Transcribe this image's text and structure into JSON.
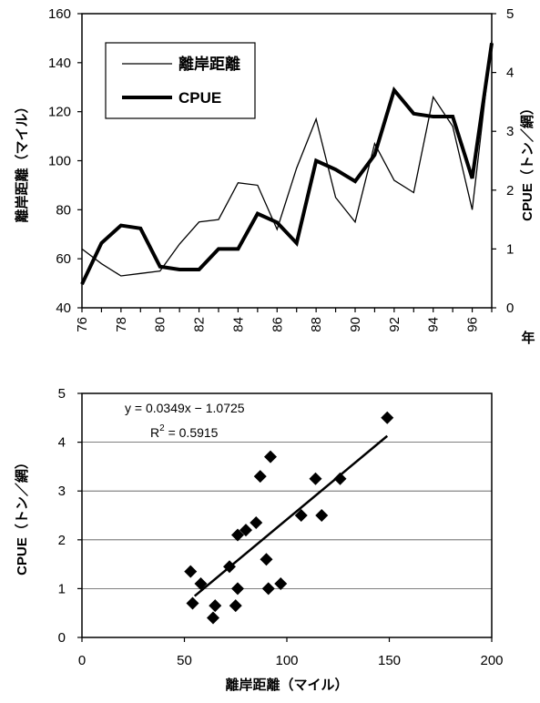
{
  "chart_data": [
    {
      "type": "line",
      "ylabel": "離岸距離（マイル）",
      "y2label": "CPUE（トン／網）",
      "xlabel": "年",
      "xlim": [
        76,
        97
      ],
      "ylim": [
        40,
        160
      ],
      "y2lim": [
        0,
        5
      ],
      "y_ticks": [
        "160",
        "140",
        "120",
        "100",
        "80",
        "60",
        "40"
      ],
      "y2_ticks": [
        "5",
        "4",
        "3",
        "2",
        "1",
        "0"
      ],
      "x_ticks": [
        "76",
        "78",
        "80",
        "82",
        "84",
        "86",
        "88",
        "90",
        "92",
        "94",
        "96"
      ],
      "legend": {
        "position": "top-left",
        "labels": [
          "離岸距離",
          "CPUE"
        ]
      },
      "grid": false,
      "series": [
        {
          "name": "離岸距離",
          "axis": "left",
          "x": [
            76,
            77,
            78,
            79,
            80,
            81,
            82,
            83,
            84,
            85,
            86,
            87,
            88,
            89,
            90,
            91,
            92,
            93,
            94,
            95,
            96,
            97
          ],
          "values": [
            64,
            58,
            53,
            54,
            55,
            66,
            75,
            76,
            91,
            90,
            72,
            97,
            117,
            85,
            75,
            107,
            92,
            87,
            126,
            114,
            80,
            149
          ]
        },
        {
          "name": "CPUE",
          "axis": "right",
          "x": [
            76,
            77,
            78,
            79,
            80,
            81,
            82,
            83,
            84,
            85,
            86,
            87,
            88,
            89,
            90,
            91,
            92,
            93,
            94,
            95,
            96,
            97
          ],
          "values": [
            0.4,
            1.1,
            1.4,
            1.35,
            0.7,
            0.65,
            0.65,
            1.0,
            1.0,
            1.6,
            1.45,
            1.1,
            2.5,
            2.35,
            2.15,
            2.6,
            3.7,
            3.3,
            3.25,
            3.25,
            2.2,
            4.5
          ]
        }
      ]
    },
    {
      "type": "scatter",
      "xlabel": "離岸距離（マイル）",
      "ylabel": "CPUE（トン／網）",
      "xlim": [
        0,
        200
      ],
      "ylim": [
        0,
        5
      ],
      "x_ticks": [
        "0",
        "50",
        "100",
        "150",
        "200"
      ],
      "y_ticks": [
        "5",
        "4",
        "3",
        "2",
        "1",
        "0"
      ],
      "grid": true,
      "trendline": {
        "equation": "y = 0.0349x − 1.0725",
        "r2": "R",
        "r2_sup": "2",
        "r2_value": " = 0.5915",
        "slope": 0.0349,
        "intercept": -1.0725,
        "x_range": [
          55,
          149
        ]
      },
      "points": [
        {
          "x": 53,
          "y": 1.35
        },
        {
          "x": 54,
          "y": 0.7
        },
        {
          "x": 58,
          "y": 1.1
        },
        {
          "x": 64,
          "y": 0.4
        },
        {
          "x": 65,
          "y": 0.65
        },
        {
          "x": 72,
          "y": 1.45
        },
        {
          "x": 75,
          "y": 0.65
        },
        {
          "x": 76,
          "y": 2.1
        },
        {
          "x": 76,
          "y": 1.0
        },
        {
          "x": 80,
          "y": 2.2
        },
        {
          "x": 85,
          "y": 2.35
        },
        {
          "x": 87,
          "y": 3.3
        },
        {
          "x": 90,
          "y": 1.6
        },
        {
          "x": 91,
          "y": 1.0
        },
        {
          "x": 92,
          "y": 3.7
        },
        {
          "x": 97,
          "y": 1.1
        },
        {
          "x": 107,
          "y": 2.5
        },
        {
          "x": 114,
          "y": 3.25
        },
        {
          "x": 117,
          "y": 2.5
        },
        {
          "x": 126,
          "y": 3.25
        },
        {
          "x": 149,
          "y": 4.5
        }
      ]
    }
  ]
}
